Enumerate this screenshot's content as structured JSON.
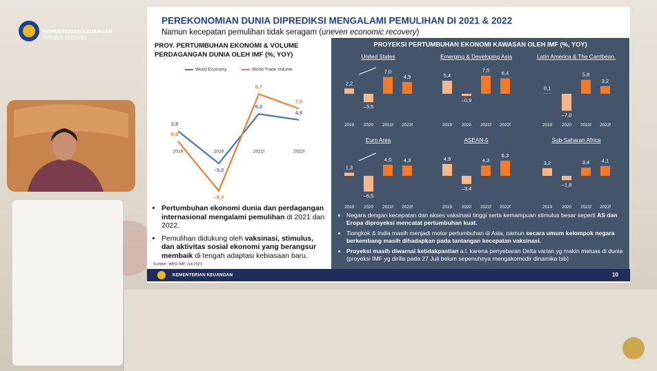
{
  "brand": {
    "name": "KEMENTERIAN KEUANGAN",
    "sub": "REPUBLIK INDONESIA"
  },
  "slide": {
    "title": "PEREKONOMIAN DUNIA DIPREDIKSI MENGALAMI PEMULIHAN DI 2021 & 2022",
    "subtitle": [
      {
        "text": "Namun kecepatan pemulihan tidak seragam (",
        "italic": false
      },
      {
        "text": "uneven economic recovery",
        "italic": true
      },
      {
        "text": ")",
        "italic": false
      }
    ],
    "left_title": "PROY. PERTUMBUHAN EKONOMI & VOLUME PERDAGANGAN DUNIA  OLEH IMF (%, YOY)",
    "right_title": "PROYEKSI PERTUMBUHAN EKONOMI KAWASAN OLEH IMF (%, YOY)",
    "left_bullets": [
      [
        {
          "text": "Pertumbuhan ekonomi dunia dan perdagangan internasional mengalami pemulihan",
          "bold": true
        },
        {
          "text": " di 2021 dan 2022.",
          "bold": false
        }
      ],
      [
        {
          "text": "Pemulihan didukung oleh ",
          "bold": false
        },
        {
          "text": "vaksinasi, stimulus, dan aktivitas sosial ekonomi yang berangsur membaik",
          "bold": true
        },
        {
          "text": " di tengah adaptasi kebiasaan baru.",
          "bold": false
        }
      ]
    ],
    "source": "Sumber: WEO IMF, Juli 2021",
    "right_bullets": [
      [
        {
          "text": "Negara dengan kecepatan dan akses vaksinasi tinggi serta kemampuan stimulus besar seperti ",
          "bold": false
        },
        {
          "text": "AS dan Eropa diproyeksi mencatat pertumbuhan kuat.",
          "bold": true
        }
      ],
      [
        {
          "text": "Tiongkok & India masih menjadi motor pertumbuhan di Asia, namun ",
          "bold": false
        },
        {
          "text": "secara umum kelompok negara berkembang masih dihadapkan pada tantangan kecepatan  vaksinasi.",
          "bold": true
        }
      ],
      [
        {
          "text": "Proyeksi masih diwarnai ketidakpastian",
          "bold": true
        },
        {
          "text": " a.l. karena penyebaran Delta varian yg makin meluas di dunia (proyeksi IMF yg dirilis pada 27 Juli belum sepenuhnya mengakomodir dinamika tsb)",
          "bold": false
        }
      ]
    ],
    "footer": "KEMENTERIAN KEUANGAN",
    "page_number": "10"
  },
  "chart_data": [
    {
      "type": "line",
      "categories": [
        "2019",
        "2020",
        "2021f",
        "2022f"
      ],
      "series": [
        {
          "name": "World Economy",
          "color": "#4472c4",
          "values": [
            2.8,
            -3.2,
            6.0,
            4.9
          ],
          "value_labels": [
            "2,8",
            "–3,2",
            "6,0",
            "4,9"
          ]
        },
        {
          "name": "World Trade Volume",
          "color": "#ed7d31",
          "values": [
            0.9,
            -8.3,
            9.7,
            7.0
          ],
          "value_labels": [
            "0,9",
            "–8,3",
            "9,7",
            "7,0"
          ]
        }
      ]
    },
    {
      "type": "bar",
      "title": "United States",
      "categories": [
        "2019",
        "2020",
        "2021f",
        "2022f"
      ],
      "values": [
        2.2,
        -3.5,
        7.0,
        4.9
      ],
      "value_labels": [
        "2,2",
        "–3,5",
        "7,0",
        "4,9"
      ],
      "colors": [
        "#f8b88b",
        "#f8b88b",
        "#f47a2a",
        "#f47a2a"
      ]
    },
    {
      "type": "bar",
      "title": "Emerging & Developing  Asia",
      "categories": [
        "2019",
        "2020",
        "2021f",
        "2022f"
      ],
      "values": [
        5.4,
        -0.9,
        7.5,
        6.4
      ],
      "value_labels": [
        "5,4",
        "–0,9",
        "7,5",
        "6,4"
      ],
      "colors": [
        "#f8b88b",
        "#f8b88b",
        "#f47a2a",
        "#f47a2a"
      ]
    },
    {
      "type": "bar",
      "title": "Latin America & The Carribean.",
      "categories": [
        "2019",
        "2020",
        "2021f",
        "2022f"
      ],
      "values": [
        0.1,
        -7.0,
        5.8,
        3.2
      ],
      "value_labels": [
        "0,1",
        "–7,0",
        "5,8",
        "3,2"
      ],
      "colors": [
        "#f8b88b",
        "#f8b88b",
        "#f47a2a",
        "#f47a2a"
      ]
    },
    {
      "type": "bar",
      "title": "Euro Area",
      "categories": [
        "2019",
        "2020",
        "2021f",
        "2022f"
      ],
      "values": [
        1.3,
        -6.5,
        4.6,
        4.3
      ],
      "value_labels": [
        "1,3",
        "–6,5",
        "4,6",
        "4,3"
      ],
      "colors": [
        "#f8b88b",
        "#f8b88b",
        "#f47a2a",
        "#f47a2a"
      ]
    },
    {
      "type": "bar",
      "title": "ASEAN-5",
      "categories": [
        "2019",
        "2020",
        "2021f",
        "2022f"
      ],
      "values": [
        4.9,
        -3.4,
        4.3,
        6.3
      ],
      "value_labels": [
        "4,9",
        "–3,4",
        "4,3",
        "6,3"
      ],
      "colors": [
        "#f8b88b",
        "#f8b88b",
        "#f47a2a",
        "#f47a2a"
      ]
    },
    {
      "type": "bar",
      "title": "Sub-Saharan Africa",
      "categories": [
        "2019",
        "2020",
        "2021f",
        "2022f"
      ],
      "values": [
        3.2,
        -1.8,
        3.4,
        4.1
      ],
      "value_labels": [
        "3,2",
        "–1,8",
        "3,4",
        "4,1"
      ],
      "colors": [
        "#f8b88b",
        "#f8b88b",
        "#f47a2a",
        "#f47a2a"
      ]
    }
  ]
}
